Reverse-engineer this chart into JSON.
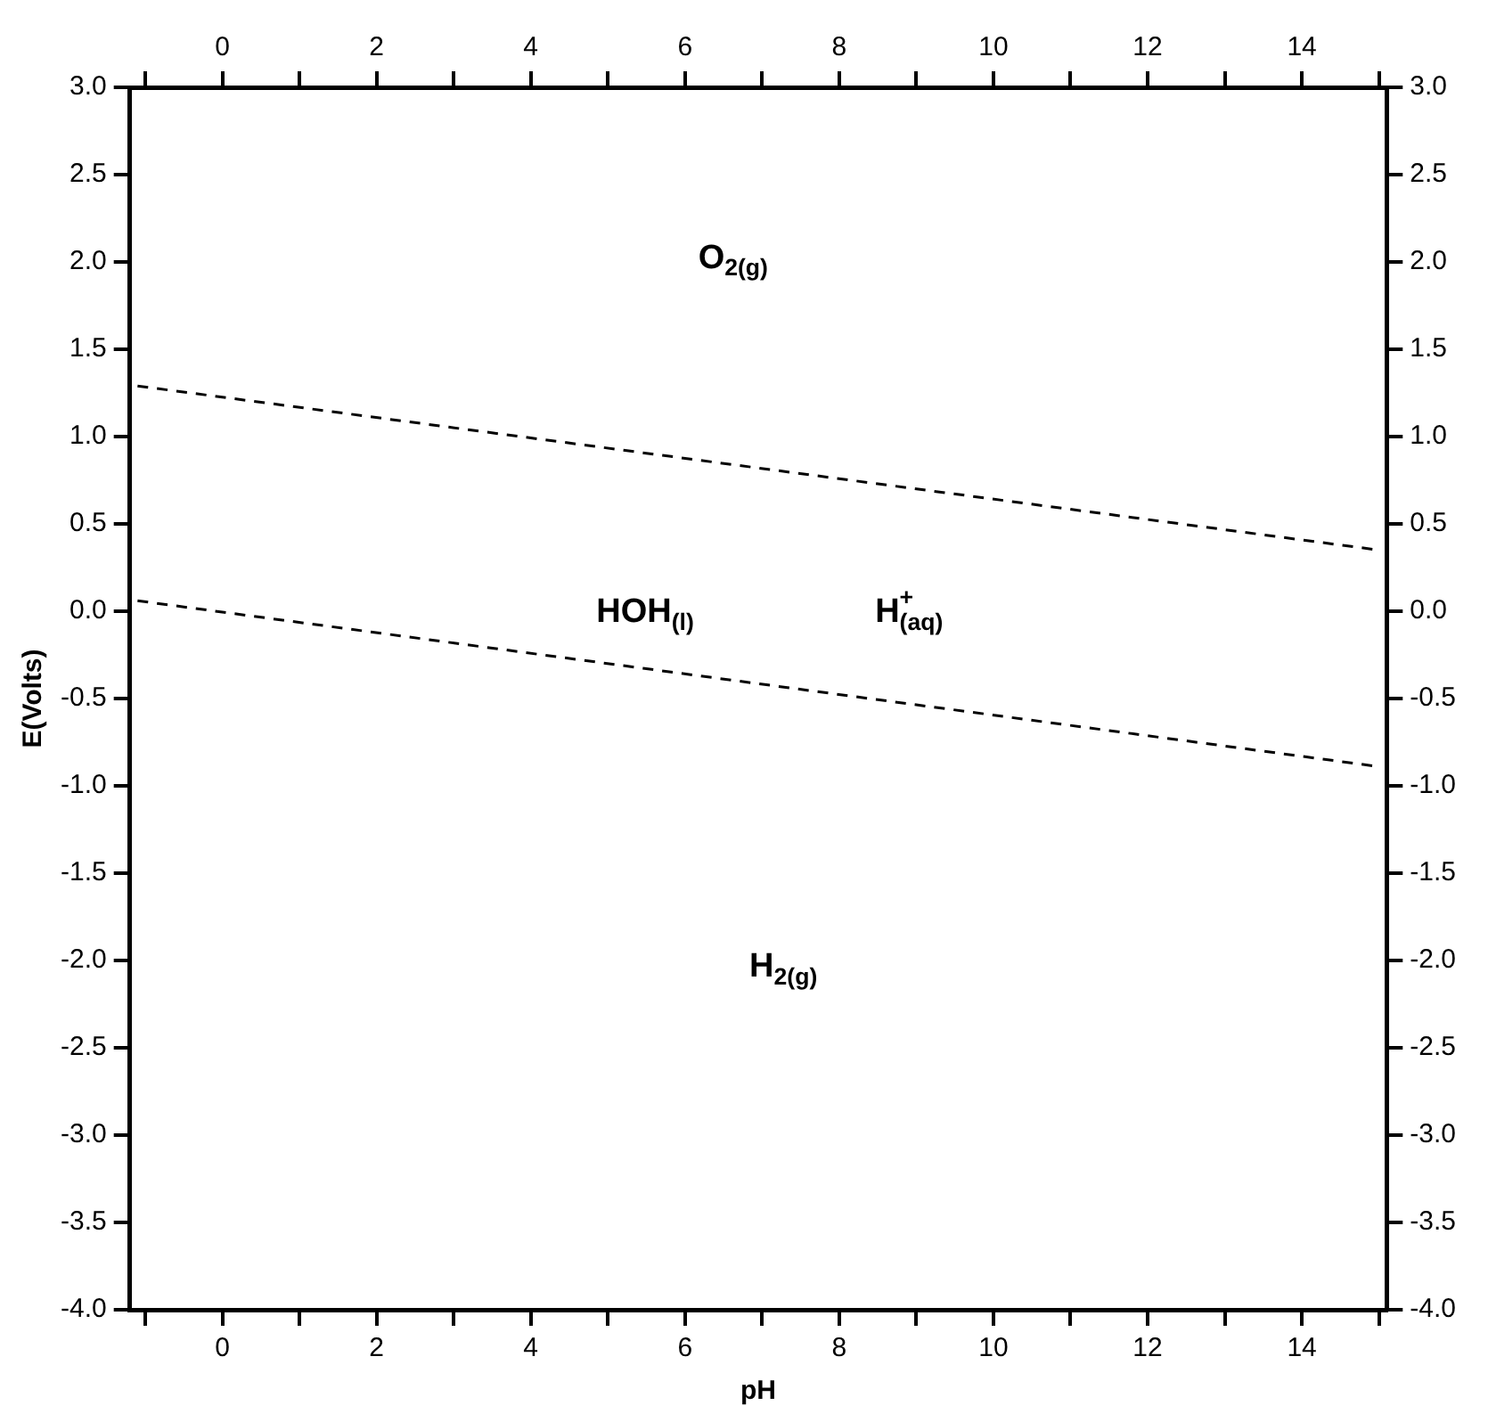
{
  "chart_data": {
    "type": "line",
    "xlabel": "pH",
    "ylabel": "E(Volts)",
    "xlim": [
      -1.2,
      15.1
    ],
    "xticks": [
      {
        "value": -1,
        "label": null
      },
      0,
      {
        "value": 1,
        "label": null
      },
      2,
      {
        "value": 3,
        "label": null
      },
      4,
      {
        "value": 5,
        "label": null
      },
      6,
      {
        "value": 7,
        "label": null
      },
      8,
      {
        "value": 9,
        "label": null
      },
      10,
      {
        "value": 11,
        "label": null
      },
      12,
      {
        "value": 13,
        "label": null
      },
      14,
      {
        "value": 15,
        "label": null
      }
    ],
    "x2lim": [
      -1.2,
      15.1
    ],
    "x2ticks": [
      {
        "value": -1,
        "label": null
      },
      0,
      {
        "value": 1,
        "label": null
      },
      2,
      {
        "value": 3,
        "label": null
      },
      4,
      {
        "value": 5,
        "label": null
      },
      6,
      {
        "value": 7,
        "label": null
      },
      8,
      {
        "value": 9,
        "label": null
      },
      10,
      {
        "value": 11,
        "label": null
      },
      12,
      {
        "value": 13,
        "label": null
      },
      14,
      {
        "value": 15,
        "label": null
      }
    ],
    "ylim": [
      -4,
      3
    ],
    "yticks": [
      {
        "value": -4,
        "label": "-4.0"
      },
      {
        "value": -3.5,
        "label": "-3.5"
      },
      {
        "value": -3,
        "label": "-3.0"
      },
      {
        "value": -2.5,
        "label": "-2.5"
      },
      {
        "value": -2,
        "label": "-2.0"
      },
      {
        "value": -1.5,
        "label": "-1.5"
      },
      {
        "value": -1,
        "label": "-1.0"
      },
      {
        "value": -0.5,
        "label": "-0.5"
      },
      {
        "value": 0,
        "label": "0.0"
      },
      {
        "value": 0.5,
        "label": "0.5"
      },
      {
        "value": 1,
        "label": "1.0"
      },
      {
        "value": 1.5,
        "label": "1.5"
      },
      {
        "value": 2,
        "label": "2.0"
      },
      {
        "value": 2.5,
        "label": "2.5"
      },
      {
        "value": 3,
        "label": "3.0"
      }
    ],
    "y2lim": [
      -4,
      3
    ],
    "y2ticks": [
      {
        "value": -4,
        "label": "-4.0"
      },
      {
        "value": -3.5,
        "label": "-3.5"
      },
      {
        "value": -3,
        "label": "-3.0"
      },
      {
        "value": -2.5,
        "label": "-2.5"
      },
      {
        "value": -2,
        "label": "-2.0"
      },
      {
        "value": -1.5,
        "label": "-1.5"
      },
      {
        "value": -1,
        "label": "-1.0"
      },
      {
        "value": -0.5,
        "label": "-0.5"
      },
      {
        "value": 0,
        "label": "0.0"
      },
      {
        "value": 0.5,
        "label": "0.5"
      },
      {
        "value": 1,
        "label": "1.0"
      },
      {
        "value": 1.5,
        "label": "1.5"
      },
      {
        "value": 2,
        "label": "2.0"
      },
      {
        "value": 2.5,
        "label": "2.5"
      },
      {
        "value": 3,
        "label": "3.0"
      }
    ],
    "x": [
      -1.1,
      15.0
    ],
    "series": [
      {
        "color": "#000000",
        "values": [
          1.29,
          0.35
        ]
      },
      {
        "color": "#000000",
        "values": [
          0.06,
          -0.89
        ]
      }
    ],
    "line_style": "dashed",
    "marker": "none",
    "grid": false,
    "legend": false,
    "annotations": [
      "O$_{2(g)}$",
      "HOH$_{(l)}$",
      "H$^{+}$$_{(aq)}$",
      "H$_{2(g)}$"
    ]
  }
}
